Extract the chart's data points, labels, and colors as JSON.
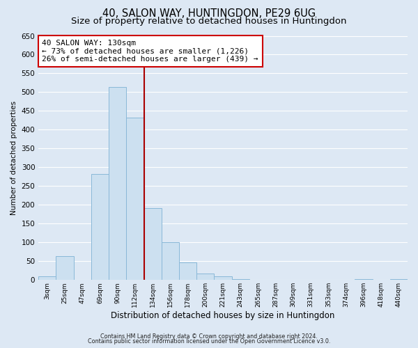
{
  "title": "40, SALON WAY, HUNTINGDON, PE29 6UG",
  "subtitle": "Size of property relative to detached houses in Huntingdon",
  "xlabel": "Distribution of detached houses by size in Huntingdon",
  "ylabel": "Number of detached properties",
  "bar_labels": [
    "3sqm",
    "25sqm",
    "47sqm",
    "69sqm",
    "90sqm",
    "112sqm",
    "134sqm",
    "156sqm",
    "178sqm",
    "200sqm",
    "221sqm",
    "243sqm",
    "265sqm",
    "287sqm",
    "309sqm",
    "331sqm",
    "353sqm",
    "374sqm",
    "396sqm",
    "418sqm",
    "440sqm"
  ],
  "bar_heights": [
    9,
    64,
    0,
    282,
    514,
    432,
    192,
    101,
    46,
    18,
    10,
    2,
    0,
    0,
    0,
    0,
    0,
    0,
    2,
    0,
    2
  ],
  "bar_color": "#cce0f0",
  "bar_edge_color": "#89b8d8",
  "vline_x_index": 6,
  "vline_color": "#aa0000",
  "ylim": [
    0,
    650
  ],
  "yticks": [
    0,
    50,
    100,
    150,
    200,
    250,
    300,
    350,
    400,
    450,
    500,
    550,
    600,
    650
  ],
  "annotation_title": "40 SALON WAY: 130sqm",
  "annotation_line1": "← 73% of detached houses are smaller (1,226)",
  "annotation_line2": "26% of semi-detached houses are larger (439) →",
  "annotation_box_color": "#ffffff",
  "annotation_box_edge": "#cc0000",
  "footer1": "Contains HM Land Registry data © Crown copyright and database right 2024.",
  "footer2": "Contains public sector information licensed under the Open Government Licence v3.0.",
  "background_color": "#dde8f4",
  "plot_background": "#dde8f4",
  "grid_color": "#ffffff",
  "title_fontsize": 10.5,
  "subtitle_fontsize": 9.5
}
